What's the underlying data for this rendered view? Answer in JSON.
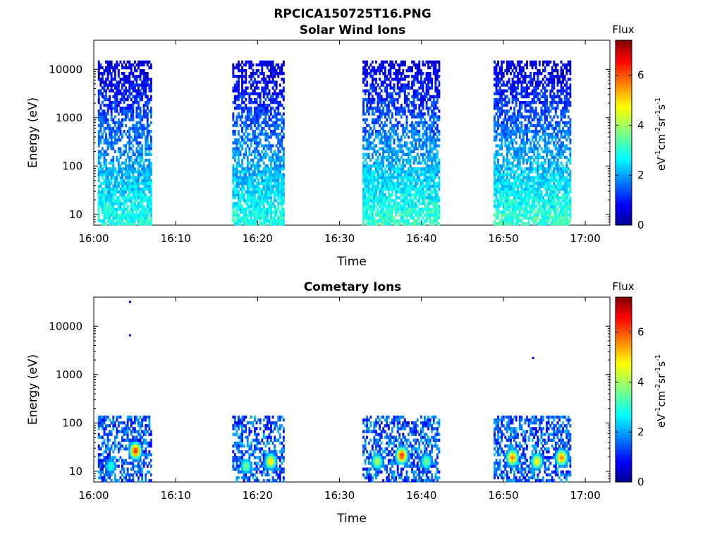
{
  "figure": {
    "title": "RPCICA150725T16.PNG"
  },
  "chart_data": [
    {
      "type": "heatmap",
      "title": "Solar Wind Ions",
      "xlabel": "Time",
      "ylabel": "Energy (eV)",
      "x_ticks": [
        "16:00",
        "16:10",
        "16:20",
        "16:30",
        "16:40",
        "16:50",
        "17:00"
      ],
      "xlim": [
        "16:00",
        "17:03"
      ],
      "y_scale": "log",
      "y_ticks": [
        "10",
        "100",
        "1000",
        "10000"
      ],
      "ylim": [
        6,
        40000
      ],
      "grid": false,
      "colorbar": {
        "label": "Flux",
        "unit_label": "eV-1cm-2sr-1s-1",
        "ticks": [
          "0",
          "2",
          "4",
          "6"
        ],
        "range": [
          0,
          7.4
        ],
        "colormap": "jet"
      },
      "data_blocks": [
        {
          "start": "16:00.5",
          "end": "16:06.9",
          "energy_max": 15000,
          "low_energy_flux": 3.0,
          "high_energy_flux": 0.6
        },
        {
          "start": "16:16.9",
          "end": "16:23.1",
          "energy_max": 15000,
          "low_energy_flux": 3.0,
          "high_energy_flux": 0.6
        },
        {
          "start": "16:32.8",
          "end": "16:42.1",
          "energy_max": 15000,
          "low_energy_flux": 3.2,
          "high_energy_flux": 0.6
        },
        {
          "start": "16:48.8",
          "end": "16:58.2",
          "energy_max": 15000,
          "low_energy_flux": 3.2,
          "high_energy_flux": 0.6
        }
      ]
    },
    {
      "type": "heatmap",
      "title": "Cometary Ions",
      "xlabel": "Time",
      "ylabel": "Energy (eV)",
      "x_ticks": [
        "16:00",
        "16:10",
        "16:20",
        "16:30",
        "16:40",
        "16:50",
        "17:00"
      ],
      "xlim": [
        "16:00",
        "17:03"
      ],
      "y_scale": "log",
      "y_ticks": [
        "10",
        "100",
        "1000",
        "10000"
      ],
      "ylim": [
        6,
        40000
      ],
      "grid": false,
      "colorbar": {
        "label": "Flux",
        "unit_label": "eV-1cm-2sr-1s-1",
        "ticks": [
          "0",
          "2",
          "4",
          "6"
        ],
        "range": [
          0,
          7.4
        ],
        "colormap": "jet"
      },
      "data_blocks": [
        {
          "start": "16:00.5",
          "end": "16:06.9",
          "energy_max": 140,
          "peaks": [
            {
              "time": "16:05.0",
              "energy": 25,
              "flux": 6.2
            },
            {
              "time": "16:02.0",
              "energy": 12,
              "flux": 3.2
            }
          ]
        },
        {
          "start": "16:16.9",
          "end": "16:23.1",
          "energy_max": 140,
          "peaks": [
            {
              "time": "16:21.5",
              "energy": 15,
              "flux": 4.9
            },
            {
              "time": "16:18.5",
              "energy": 12,
              "flux": 3.8
            }
          ]
        },
        {
          "start": "16:32.8",
          "end": "16:42.1",
          "energy_max": 140,
          "peaks": [
            {
              "time": "16:37.5",
              "energy": 20,
              "flux": 6.2
            },
            {
              "time": "16:34.5",
              "energy": 15,
              "flux": 4.2
            },
            {
              "time": "16:40.5",
              "energy": 15,
              "flux": 3.8
            }
          ]
        },
        {
          "start": "16:48.8",
          "end": "16:58.2",
          "energy_max": 140,
          "peaks": [
            {
              "time": "16:51.0",
              "energy": 18,
              "flux": 5.6
            },
            {
              "time": "16:54.0",
              "energy": 15,
              "flux": 4.8
            },
            {
              "time": "16:57.0",
              "energy": 18,
              "flux": 5.6
            }
          ]
        }
      ],
      "outliers": [
        {
          "time": "16:04.3",
          "energy": 32000,
          "flux": 0.8
        },
        {
          "time": "16:04.3",
          "energy": 6500,
          "flux": 1.0
        },
        {
          "time": "16:53.5",
          "energy": 2200,
          "flux": 0.9
        }
      ]
    }
  ]
}
